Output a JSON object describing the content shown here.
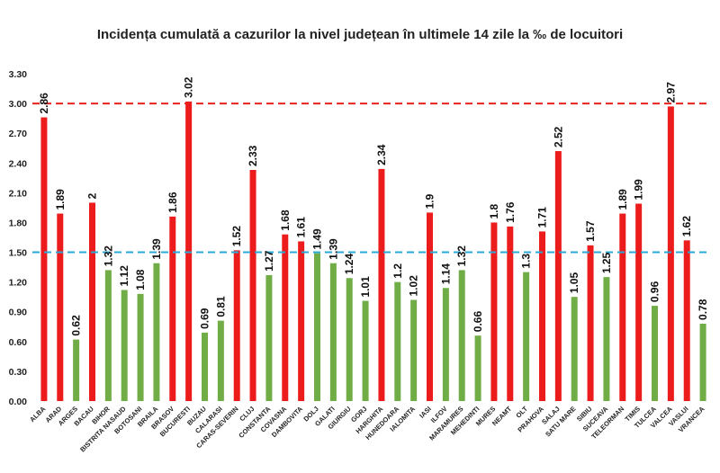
{
  "chart_data": {
    "type": "bar",
    "title": "Incidența cumulată a cazurilor la nivel județean în ultimele 14 zile la ‰ de locuitori",
    "ylim": [
      0,
      3.3
    ],
    "yticks": [
      "0.00",
      "0.30",
      "0.60",
      "0.90",
      "1.20",
      "1.50",
      "1.80",
      "2.10",
      "2.40",
      "2.70",
      "3.00",
      "3.30"
    ],
    "grid": false,
    "categories": [
      "ALBA",
      "ARAD",
      "ARGES",
      "BACAU",
      "BIHOR",
      "BISTRITA NASAUD",
      "BOTOSANI",
      "BRAILA",
      "BRASOV",
      "BUCURESTI",
      "BUZAU",
      "CALARASI",
      "CARAS-SEVERIN",
      "CLUJ",
      "CONSTANTA",
      "COVASNA",
      "DAMBOVITA",
      "DOLJ",
      "GALATI",
      "GIURGIU",
      "GORJ",
      "HARGHITA",
      "HUNEDOARA",
      "IALOMITA",
      "IASI",
      "ILFOV",
      "MARAMURES",
      "MEHEDINTI",
      "MURES",
      "NEAMT",
      "OLT",
      "PRAHOVA",
      "SALAJ",
      "SATU MARE",
      "SIBIU",
      "SUCEAVA",
      "TELEORMAN",
      "TIMIS",
      "TULCEA",
      "VALCEA",
      "VASLUI",
      "VRANCEA"
    ],
    "values": [
      2.86,
      1.89,
      0.62,
      2,
      1.32,
      1.12,
      1.08,
      1.39,
      1.86,
      3.02,
      0.69,
      0.81,
      1.52,
      2.33,
      1.27,
      1.68,
      1.61,
      1.49,
      1.39,
      1.24,
      1.01,
      2.34,
      1.2,
      1.02,
      1.9,
      1.14,
      1.32,
      0.66,
      1.8,
      1.76,
      1.3,
      1.71,
      2.52,
      1.05,
      1.57,
      1.25,
      1.89,
      1.99,
      0.96,
      2.97,
      1.62,
      0.78
    ],
    "value_labels": [
      "2.86",
      "1.89",
      "0.62",
      "2",
      "1.32",
      "1.12",
      "1.08",
      "1.39",
      "1.86",
      "3.02",
      "0.69",
      "0.81",
      "1.52",
      "2.33",
      "1.27",
      "1.68",
      "1.61",
      "1.49",
      "1.39",
      "1.24",
      "1.01",
      "2.34",
      "1.2",
      "1.02",
      "1.9",
      "1.14",
      "1.32",
      "0.66",
      "1.8",
      "1.76",
      "1.3",
      "1.71",
      "2.52",
      "1.05",
      "1.57",
      "1.25",
      "1.89",
      "1.99",
      "0.96",
      "2.97",
      "1.62",
      "0.78"
    ],
    "threshold_lines": [
      {
        "value": 3.0,
        "color": "#e8211d",
        "style": "dashed"
      },
      {
        "value": 1.5,
        "color": "#2aa9d8",
        "style": "dashed"
      }
    ],
    "colors": {
      "high": "#ed1c1c",
      "low": "#70ad47"
    },
    "color_rule_threshold": 1.5
  }
}
